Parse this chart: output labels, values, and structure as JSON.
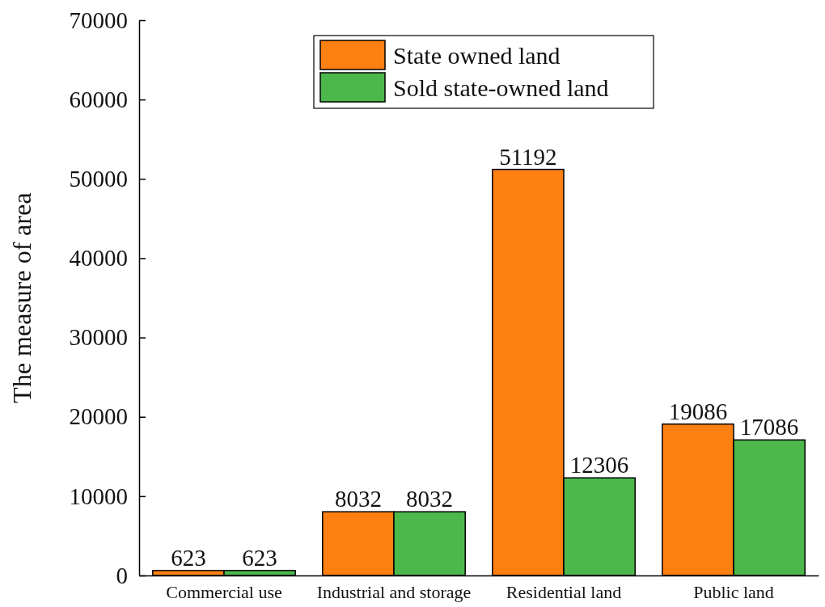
{
  "chart_data": {
    "type": "bar",
    "ylabel": "The measure of area",
    "categories": [
      "Commercial use",
      "Industrial and storage",
      "Residential land",
      "Public land"
    ],
    "series": [
      {
        "name": "State owned land",
        "color": "#ff8012",
        "values": [
          623,
          8032,
          51192,
          19086
        ]
      },
      {
        "name": "Sold state-owned land",
        "color": "#4cb84c",
        "values": [
          623,
          8032,
          12306,
          17086
        ]
      }
    ],
    "ylim": [
      0,
      70000
    ],
    "yticks": [
      0,
      10000,
      20000,
      30000,
      40000,
      50000,
      60000,
      70000
    ],
    "data_labels": true,
    "legend": "top",
    "grid": false
  }
}
